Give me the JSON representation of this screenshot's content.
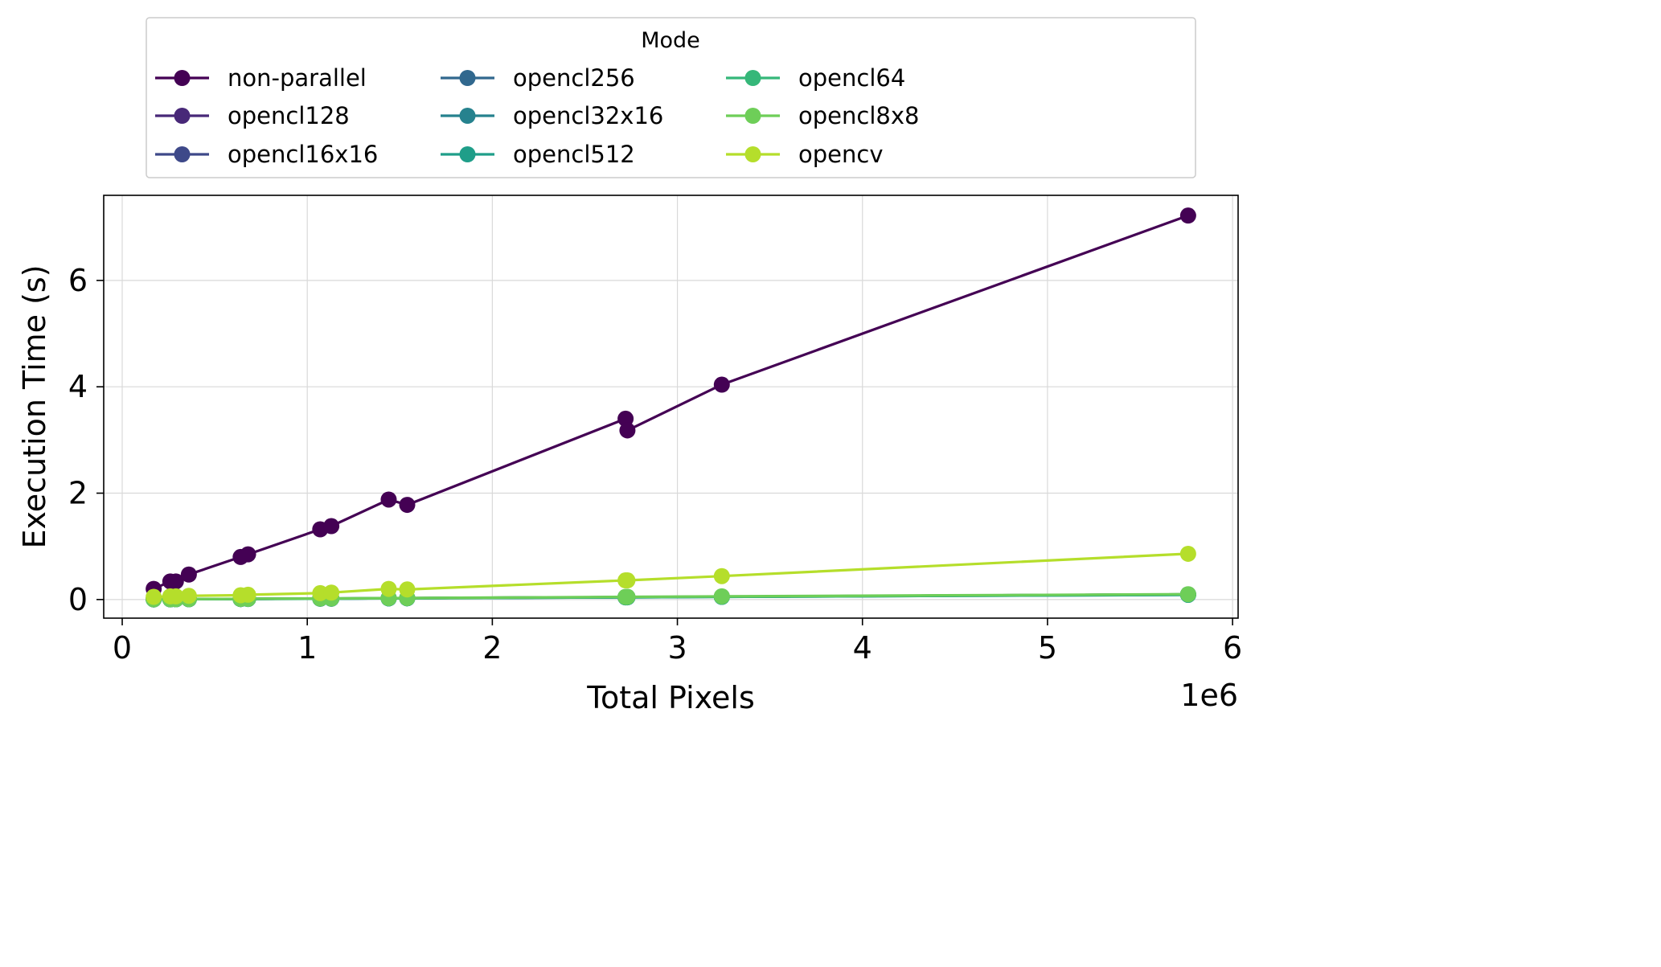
{
  "chart_data": {
    "type": "line",
    "title": "",
    "xlabel": "Total Pixels",
    "ylabel": "Execution Time (s)",
    "x_offset_label": "1e6",
    "xlim": [
      -0.1,
      6.03
    ],
    "ylim": [
      -0.35,
      7.6
    ],
    "x_unit_multiplier": 1000000,
    "x_ticks": [
      0,
      1,
      2,
      3,
      4,
      5,
      6
    ],
    "x_tick_labels": [
      "0",
      "1",
      "2",
      "3",
      "4",
      "5",
      "6"
    ],
    "y_ticks": [
      0,
      2,
      4,
      6
    ],
    "y_tick_labels": [
      "0",
      "2",
      "4",
      "6"
    ],
    "grid": true,
    "legend": {
      "title": "Mode",
      "placement": "top-center",
      "ncol": 4
    },
    "x": [
      0.17,
      0.26,
      0.29,
      0.36,
      0.64,
      0.68,
      1.07,
      1.13,
      1.44,
      1.54,
      2.72,
      2.73,
      3.24,
      5.76
    ],
    "series": [
      {
        "name": "non-parallel",
        "color": "#440154",
        "values": [
          0.2,
          0.34,
          0.34,
          0.47,
          0.8,
          0.85,
          1.32,
          1.38,
          1.88,
          1.78,
          3.4,
          3.18,
          4.04,
          7.22
        ]
      },
      {
        "name": "opencl128",
        "color": "#482878",
        "values": [
          0.004,
          0.005,
          0.006,
          0.007,
          0.011,
          0.012,
          0.018,
          0.019,
          0.024,
          0.026,
          0.045,
          0.046,
          0.054,
          0.096
        ]
      },
      {
        "name": "opencl16x16",
        "color": "#3e4989",
        "values": [
          0.004,
          0.005,
          0.006,
          0.007,
          0.011,
          0.012,
          0.018,
          0.019,
          0.024,
          0.026,
          0.045,
          0.046,
          0.054,
          0.096
        ]
      },
      {
        "name": "opencl256",
        "color": "#31688e",
        "values": [
          0.004,
          0.005,
          0.006,
          0.007,
          0.011,
          0.012,
          0.018,
          0.019,
          0.024,
          0.026,
          0.045,
          0.046,
          0.054,
          0.096
        ]
      },
      {
        "name": "opencl32x16",
        "color": "#26828e",
        "values": [
          0.003,
          0.004,
          0.005,
          0.006,
          0.01,
          0.011,
          0.016,
          0.017,
          0.022,
          0.024,
          0.041,
          0.042,
          0.05,
          0.089
        ]
      },
      {
        "name": "opencl512",
        "color": "#1f9e89",
        "values": [
          0.003,
          0.004,
          0.005,
          0.006,
          0.01,
          0.011,
          0.016,
          0.017,
          0.022,
          0.024,
          0.041,
          0.042,
          0.05,
          0.089
        ]
      },
      {
        "name": "opencl64",
        "color": "#35b779",
        "values": [
          0.004,
          0.005,
          0.006,
          0.007,
          0.011,
          0.012,
          0.018,
          0.019,
          0.024,
          0.026,
          0.045,
          0.046,
          0.054,
          0.096
        ]
      },
      {
        "name": "opencl8x8",
        "color": "#6ece58",
        "values": [
          0.005,
          0.006,
          0.007,
          0.008,
          0.013,
          0.014,
          0.02,
          0.021,
          0.027,
          0.028,
          0.05,
          0.051,
          0.06,
          0.1
        ]
      },
      {
        "name": "opencv",
        "color": "#b5de2b",
        "values": [
          0.05,
          0.06,
          0.06,
          0.07,
          0.08,
          0.09,
          0.12,
          0.13,
          0.2,
          0.19,
          0.36,
          0.36,
          0.44,
          0.86
        ]
      }
    ]
  }
}
